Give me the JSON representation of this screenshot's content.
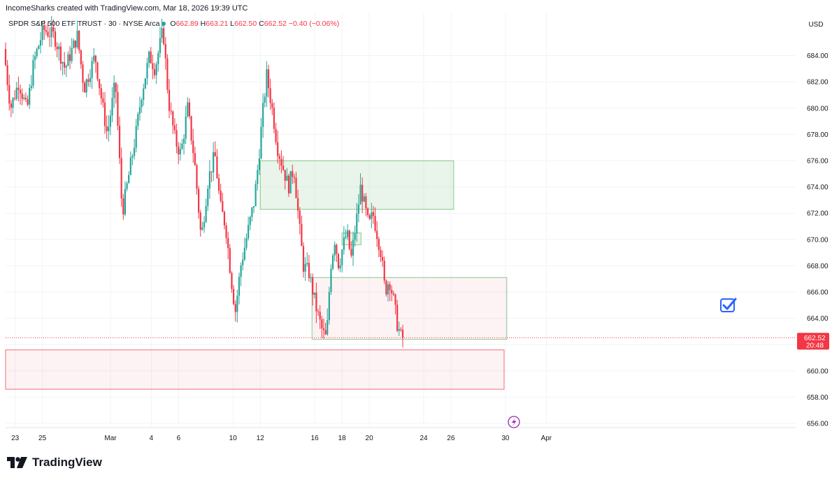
{
  "header": {
    "credit": "IncomeSharks created with TradingView.com, Mar 18, 2026 19:39 UTC",
    "symbol": "SPDR S&P 500 ETF TRUST · 30 · NYSE Arca",
    "open_label": "O",
    "open": "662.89",
    "high_label": "H",
    "high": "663.21",
    "low_label": "L",
    "low": "662.50",
    "close_label": "C",
    "close": "662.52",
    "change": "−0.40 (−0.06%)",
    "currency": "USD"
  },
  "brand": {
    "name": "TradingView"
  },
  "colors": {
    "up": "#26a69a",
    "down": "#f23645",
    "supply_zone": "#4caf50",
    "demand_zone": "#f23645",
    "accent": "#2962ff",
    "event": "#9c27b0"
  },
  "icons": {
    "alert": "checkbox-check-icon",
    "event": "lightning-icon",
    "logo": "tradingview-logo-icon"
  },
  "chart_data": {
    "type": "candlestick",
    "title": "SPDR S&P 500 ETF TRUST · 30 · NYSE Arca",
    "ylim": [
      655,
      686
    ],
    "y_ticks": [
      "684.00",
      "682.00",
      "680.00",
      "678.00",
      "676.00",
      "674.00",
      "672.00",
      "670.00",
      "668.00",
      "666.00",
      "664.00",
      "662.00",
      "660.00",
      "658.00",
      "656.00"
    ],
    "x_ticks": [
      "23",
      "25",
      "Mar",
      "4",
      "6",
      "10",
      "12",
      "16",
      "18",
      "20",
      "24",
      "26",
      "30",
      "Apr"
    ],
    "x_tick_days": [
      -6,
      -4,
      1,
      4,
      6,
      10,
      12,
      16,
      18,
      20,
      24,
      26,
      30,
      33
    ],
    "last_price": {
      "value": 662.52,
      "label": "662.52",
      "countdown": "20:48"
    },
    "grid": true,
    "zones": [
      {
        "kind": "supply",
        "start_day": 12,
        "end_day": 26.2,
        "low": 672.3,
        "high": 676.0
      },
      {
        "kind": "supply",
        "start_day": 18,
        "end_day": 19.4,
        "low": 669.6,
        "high": 670.5
      },
      {
        "kind": "demand",
        "start_day": 15.8,
        "end_day": 30.1,
        "low": 662.4,
        "high": 667.1,
        "border": "supply"
      },
      {
        "kind": "demand",
        "start_day": -6.7,
        "end_day": 29.9,
        "low": 658.6,
        "high": 661.6
      }
    ],
    "price_path": [
      {
        "day": -6.7,
        "price": 684.5
      },
      {
        "day": -6.2,
        "price": 680.0
      },
      {
        "day": -5.6,
        "price": 682.0
      },
      {
        "day": -5.0,
        "price": 679.8
      },
      {
        "day": -4.5,
        "price": 683.5
      },
      {
        "day": -3.8,
        "price": 686.0
      },
      {
        "day": -3.0,
        "price": 685.5
      },
      {
        "day": -2.2,
        "price": 683.0
      },
      {
        "day": -1.3,
        "price": 685.5
      },
      {
        "day": -0.8,
        "price": 681.5
      },
      {
        "day": 0.0,
        "price": 684.0
      },
      {
        "day": 0.5,
        "price": 680.5
      },
      {
        "day": 0.9,
        "price": 678.0
      },
      {
        "day": 1.5,
        "price": 682.0
      },
      {
        "day": 2.0,
        "price": 672.0
      },
      {
        "day": 2.5,
        "price": 675.0
      },
      {
        "day": 3.0,
        "price": 678.0
      },
      {
        "day": 3.4,
        "price": 681.0
      },
      {
        "day": 4.0,
        "price": 684.0
      },
      {
        "day": 4.4,
        "price": 683.0
      },
      {
        "day": 5.0,
        "price": 686.0
      },
      {
        "day": 5.4,
        "price": 680.5
      },
      {
        "day": 5.9,
        "price": 677.5
      },
      {
        "day": 6.3,
        "price": 676.5
      },
      {
        "day": 6.8,
        "price": 680.0
      },
      {
        "day": 7.3,
        "price": 676.0
      },
      {
        "day": 7.8,
        "price": 670.0
      },
      {
        "day": 8.3,
        "price": 674.5
      },
      {
        "day": 8.8,
        "price": 676.5
      },
      {
        "day": 9.2,
        "price": 672.5
      },
      {
        "day": 9.6,
        "price": 671.0
      },
      {
        "day": 10.0,
        "price": 667.0
      },
      {
        "day": 10.3,
        "price": 664.5
      },
      {
        "day": 10.7,
        "price": 668.0
      },
      {
        "day": 11.2,
        "price": 670.5
      },
      {
        "day": 11.7,
        "price": 673.0
      },
      {
        "day": 12.0,
        "price": 676.0
      },
      {
        "day": 12.3,
        "price": 679.5
      },
      {
        "day": 12.6,
        "price": 682.5
      },
      {
        "day": 13.0,
        "price": 680.0
      },
      {
        "day": 13.4,
        "price": 677.0
      },
      {
        "day": 13.8,
        "price": 675.5
      },
      {
        "day": 14.2,
        "price": 674.0
      },
      {
        "day": 14.6,
        "price": 675.5
      },
      {
        "day": 15.0,
        "price": 671.0
      },
      {
        "day": 15.3,
        "price": 668.0
      },
      {
        "day": 15.7,
        "price": 667.5
      },
      {
        "day": 16.0,
        "price": 666.0
      },
      {
        "day": 16.3,
        "price": 664.5
      },
      {
        "day": 16.7,
        "price": 663.0
      },
      {
        "day": 17.0,
        "price": 662.4
      },
      {
        "day": 17.3,
        "price": 668.0
      },
      {
        "day": 17.6,
        "price": 670.0
      },
      {
        "day": 17.9,
        "price": 668.0
      },
      {
        "day": 18.2,
        "price": 669.5
      },
      {
        "day": 18.5,
        "price": 670.5
      },
      {
        "day": 18.8,
        "price": 668.5
      },
      {
        "day": 19.2,
        "price": 671.5
      },
      {
        "day": 19.5,
        "price": 674.0
      },
      {
        "day": 19.8,
        "price": 672.5
      },
      {
        "day": 20.1,
        "price": 671.0
      },
      {
        "day": 20.4,
        "price": 672.0
      },
      {
        "day": 20.7,
        "price": 670.5
      },
      {
        "day": 21.0,
        "price": 669.0
      },
      {
        "day": 21.3,
        "price": 666.0
      },
      {
        "day": 21.6,
        "price": 667.0
      },
      {
        "day": 21.9,
        "price": 665.5
      },
      {
        "day": 22.2,
        "price": 663.5
      },
      {
        "day": 22.5,
        "price": 662.5
      }
    ]
  }
}
